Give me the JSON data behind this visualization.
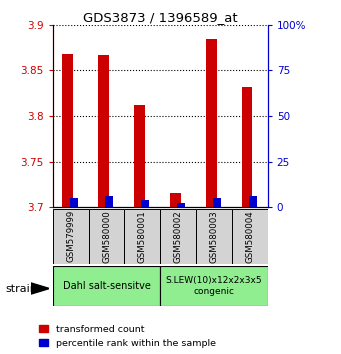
{
  "title": "GDS3873 / 1396589_at",
  "samples": [
    "GSM579999",
    "GSM580000",
    "GSM580001",
    "GSM580002",
    "GSM580003",
    "GSM580004"
  ],
  "transformed_counts": [
    3.868,
    3.867,
    3.812,
    3.716,
    3.884,
    3.832
  ],
  "percentile_ranks": [
    5,
    6,
    4,
    2,
    5,
    6
  ],
  "ylim_left": [
    3.7,
    3.9
  ],
  "ylim_right": [
    0,
    100
  ],
  "yticks_left": [
    3.7,
    3.75,
    3.8,
    3.85,
    3.9
  ],
  "yticks_right": [
    0,
    25,
    50,
    75,
    100
  ],
  "ytick_labels_left": [
    "3.7",
    "3.75",
    "3.8",
    "3.85",
    "3.9"
  ],
  "ytick_labels_right": [
    "0",
    "25",
    "50",
    "75",
    "100%"
  ],
  "red_color": "#cc0000",
  "blue_color": "#0000cc",
  "group1_label": "Dahl salt-sensitve",
  "group1_samples": [
    0,
    1,
    2
  ],
  "group2_label": "S.LEW(10)x12x2x3x5\ncongenic",
  "group2_samples": [
    3,
    4,
    5
  ],
  "group_color": "#90ee90",
  "sample_box_color": "#d3d3d3",
  "strain_label": "strain",
  "legend_red": "transformed count",
  "legend_blue": "percentile rank within the sample",
  "tick_color_left": "#cc0000",
  "tick_color_right": "#0000cc"
}
